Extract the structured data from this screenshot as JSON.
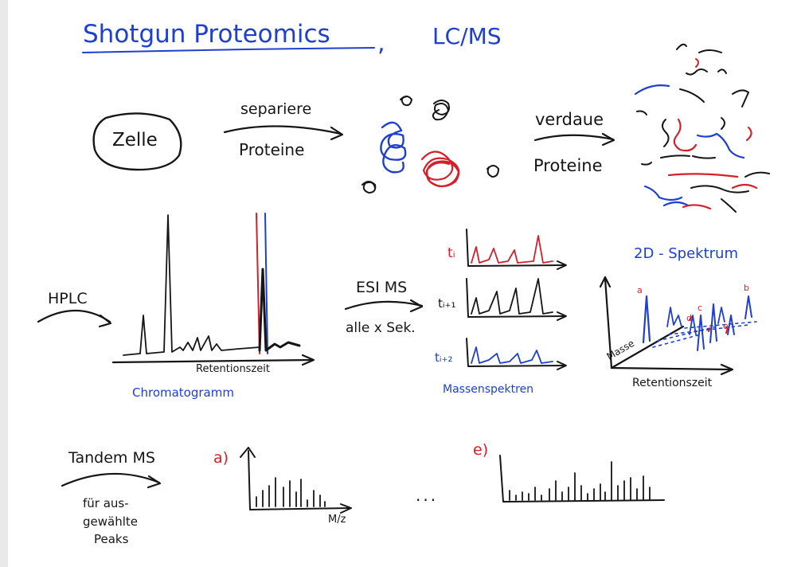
{
  "title": {
    "main": "Shotgun Proteomics",
    "comma": ",",
    "sub": "LC/MS"
  },
  "step1": {
    "cell": "Zelle",
    "arrow_top": "separiere",
    "arrow_bottom": "Proteine"
  },
  "step2": {
    "arrow_top": "verdaue",
    "arrow_bottom": "Proteine"
  },
  "hplc": {
    "label": "HPLC",
    "x_axis_label": "Retentionszeit",
    "caption": "Chromatogramm"
  },
  "esi": {
    "label": "ESI MS",
    "note": "alle x Sek.",
    "times": [
      "tᵢ",
      "tᵢ₊₁",
      "tᵢ₊₂"
    ],
    "caption": "Massenspektren"
  },
  "spectrum2d": {
    "title": "2D - Spektrum",
    "y_axis_label": "Masse",
    "x_axis_label": "Retentionszeit",
    "peak_markers": [
      "a",
      "b",
      "c",
      "d",
      "e"
    ]
  },
  "tandem": {
    "label": "Tandem MS",
    "note_lines": [
      "für aus-",
      "gewählte",
      "Peaks"
    ],
    "panel_a": "a)",
    "panel_e": "e)",
    "x_axis_label": "M/z",
    "ellipsis": "..."
  },
  "colors": {
    "ink_black": "#161616",
    "ink_blue": "#1e3fd0",
    "ink_red": "#d4202a"
  }
}
